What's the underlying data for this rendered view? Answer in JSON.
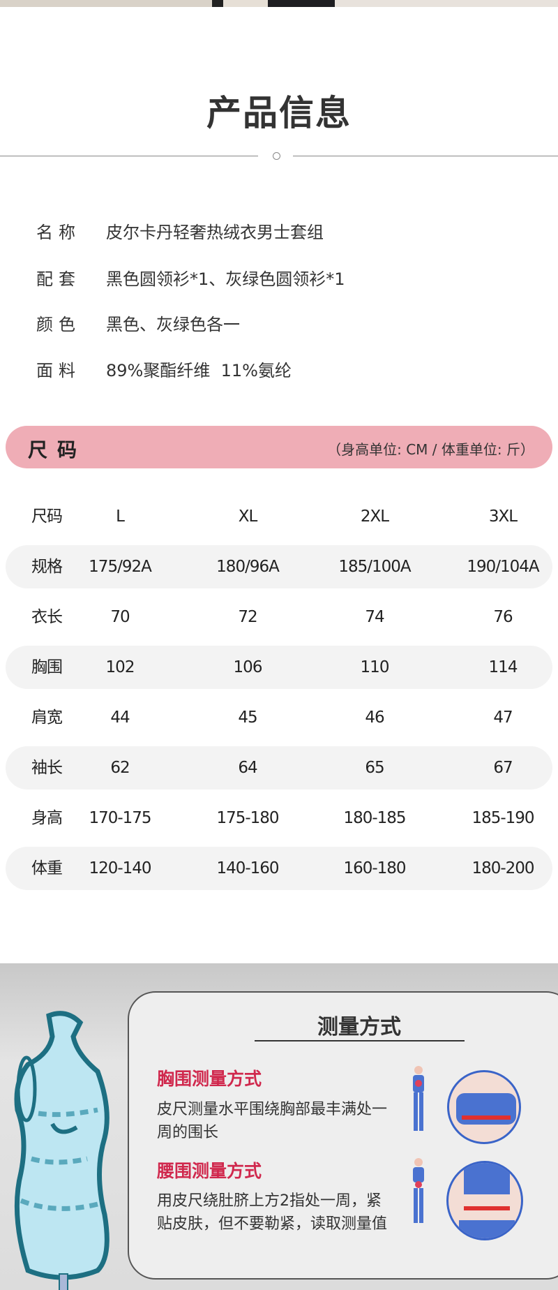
{
  "header": {
    "title": "产品信息"
  },
  "info": [
    {
      "label": "名称",
      "value": "皮尔卡丹轻奢热绒衣男士套组"
    },
    {
      "label": "配套",
      "value": "黑色圆领衫*1、灰绿色圆领衫*1"
    },
    {
      "label": "颜色",
      "value": "黑色、灰绿色各一"
    },
    {
      "label": "面料",
      "value": "89%聚酯纤维  11%氨纶"
    }
  ],
  "size_section": {
    "title": "尺码",
    "unit_note": "（身高单位: CM / 体重单位: 斤）",
    "accent_color": "#efadb6"
  },
  "size_table": {
    "headers": [
      "尺码",
      "L",
      "XL",
      "2XL",
      "3XL"
    ],
    "rows": [
      [
        "规格",
        "175/92A",
        "180/96A",
        "185/100A",
        "190/104A"
      ],
      [
        "衣长",
        "70",
        "72",
        "74",
        "76"
      ],
      [
        "胸围",
        "102",
        "106",
        "110",
        "114"
      ],
      [
        "肩宽",
        "44",
        "45",
        "46",
        "47"
      ],
      [
        "袖长",
        "62",
        "64",
        "65",
        "67"
      ],
      [
        "身高",
        "170-175",
        "175-180",
        "180-185",
        "185-190"
      ],
      [
        "体重",
        "120-140",
        "140-160",
        "160-180",
        "180-200"
      ]
    ]
  },
  "measure": {
    "title": "测量方式",
    "chest_title": "胸围测量方式",
    "chest_text": "皮尺测量水平围绕胸部最丰满处一周的围长",
    "waist_title": "腰围测量方式",
    "waist_text": "用皮尺绕肚脐上方2指处一周，紧贴皮肤，但不要勒紧，读取测量值",
    "accent_color": "#d0284d"
  }
}
